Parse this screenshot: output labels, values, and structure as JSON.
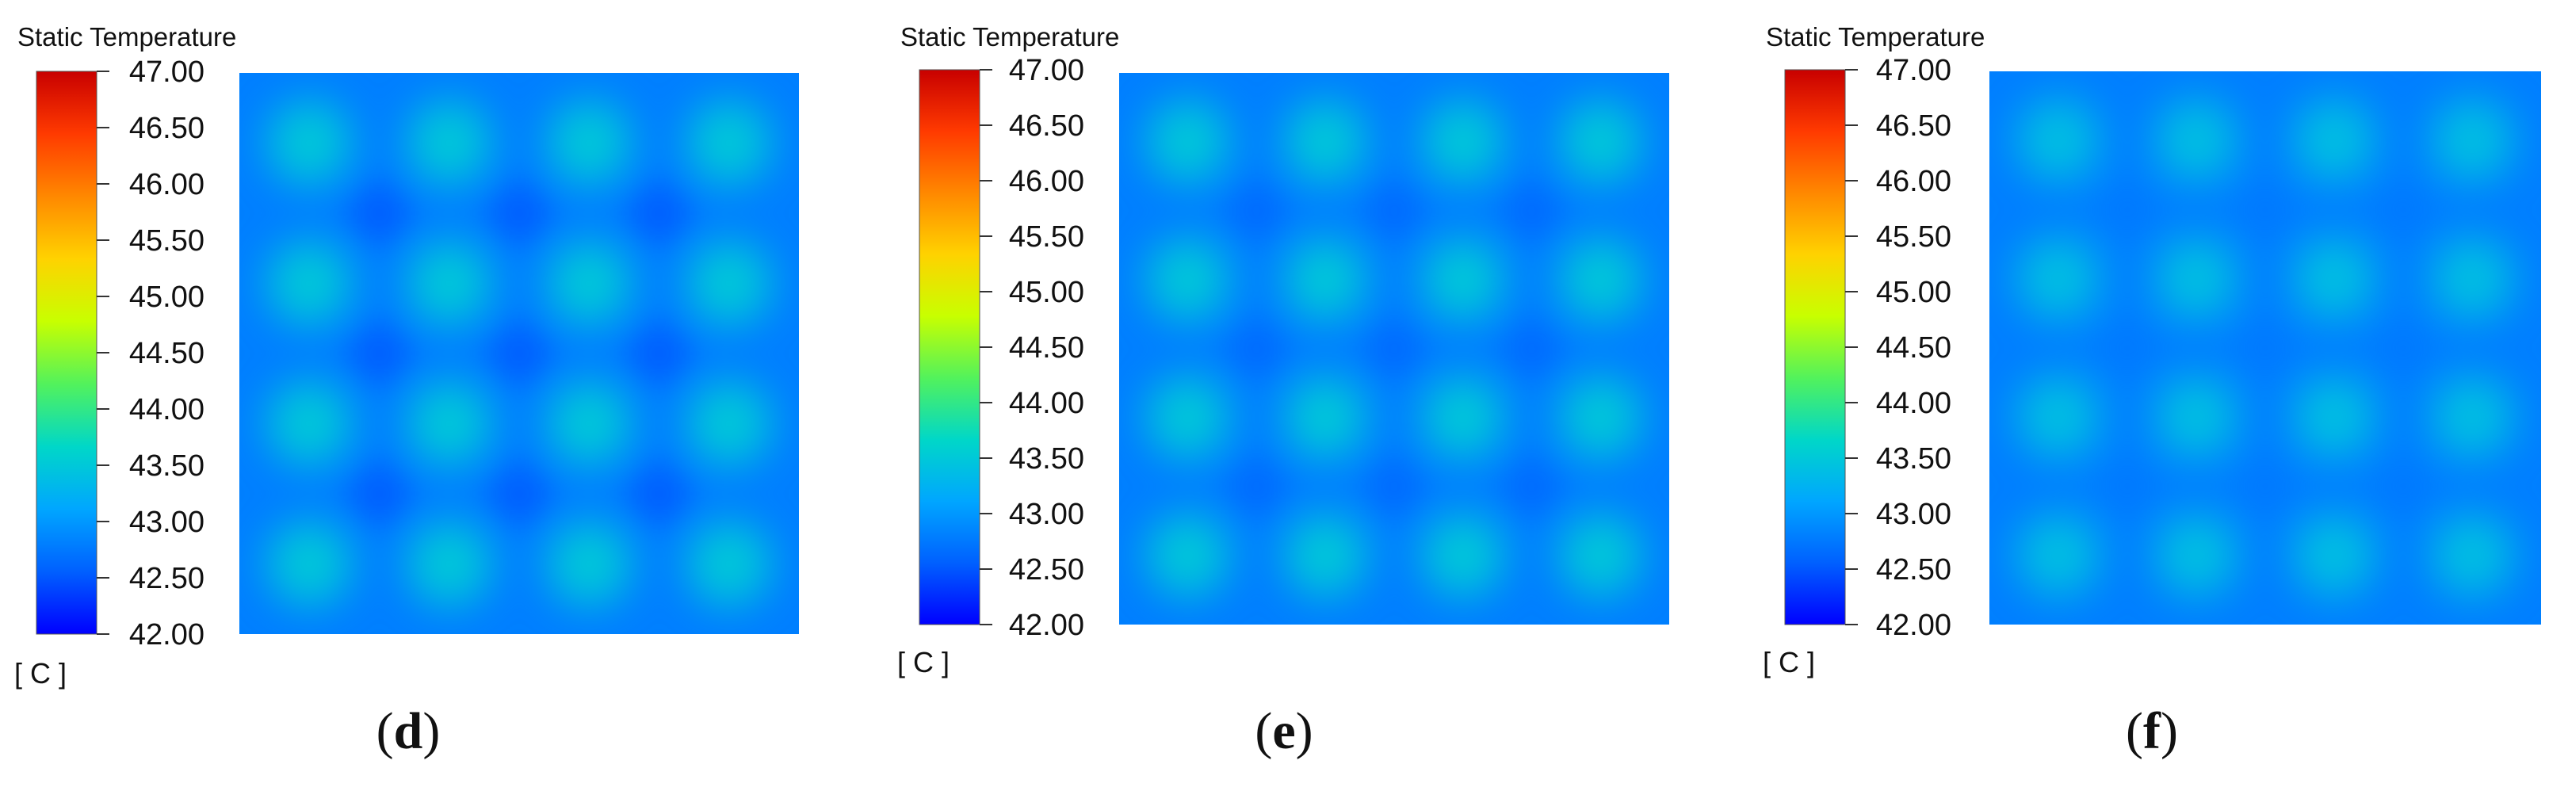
{
  "colors": {
    "scale": [
      "#0000ff",
      "#0060ff",
      "#00a6ff",
      "#00d7c8",
      "#52f25c",
      "#c8ff00",
      "#ffd200",
      "#ff8800",
      "#ff3a00",
      "#c80000"
    ],
    "spot": "#2ed488",
    "background": "#2f6ef0",
    "cold_spot": "#234fd8"
  },
  "chart_data": [
    {
      "type": "heatmap",
      "title": "Static Temperature",
      "colorbar_ticks": [
        "47.00",
        "46.50",
        "46.00",
        "45.50",
        "45.00",
        "44.50",
        "44.00",
        "43.50",
        "43.00",
        "42.50",
        "42.00"
      ],
      "colorbar_unit": "[ C ]",
      "range": [
        42.0,
        47.0
      ],
      "grid": [
        4,
        4
      ],
      "spot_value": 43.5,
      "background_value": 42.8,
      "cold_value": 42.5,
      "panel_label_prefix": "(",
      "panel_label_letter": "d",
      "panel_label_suffix": ")"
    },
    {
      "type": "heatmap",
      "title": "Static Temperature",
      "colorbar_ticks": [
        "47.00",
        "46.50",
        "46.00",
        "45.50",
        "45.00",
        "44.50",
        "44.00",
        "43.50",
        "43.00",
        "42.50",
        "42.00"
      ],
      "colorbar_unit": "[ C ]",
      "range": [
        42.0,
        47.0
      ],
      "grid": [
        4,
        4
      ],
      "spot_value": 43.5,
      "background_value": 42.8,
      "cold_value": 42.6,
      "panel_label_prefix": "(",
      "panel_label_letter": "e",
      "panel_label_suffix": ")"
    },
    {
      "type": "heatmap",
      "title": "Static Temperature",
      "colorbar_ticks": [
        "47.00",
        "46.50",
        "46.00",
        "45.50",
        "45.00",
        "44.50",
        "44.00",
        "43.50",
        "43.00",
        "42.50",
        "42.00"
      ],
      "colorbar_unit": "[ C ]",
      "range": [
        42.0,
        47.0
      ],
      "grid": [
        4,
        4
      ],
      "spot_value": 43.4,
      "background_value": 42.8,
      "cold_value": 42.75,
      "panel_label_prefix": "(",
      "panel_label_letter": "f",
      "panel_label_suffix": ")"
    }
  ]
}
